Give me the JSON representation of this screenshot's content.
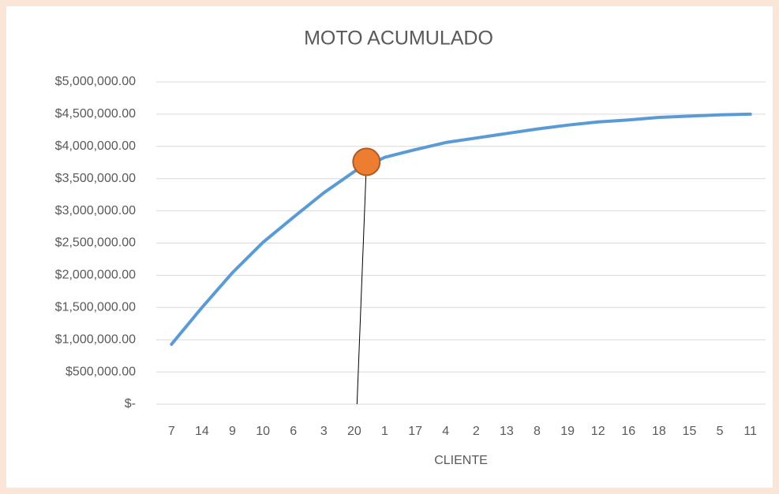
{
  "chart_data": {
    "type": "line",
    "title": "MOTO ACUMULADO",
    "x_label": "CLIENTE",
    "categories": [
      "7",
      "14",
      "9",
      "10",
      "6",
      "3",
      "20",
      "1",
      "17",
      "4",
      "2",
      "13",
      "8",
      "19",
      "12",
      "16",
      "18",
      "15",
      "5",
      "11"
    ],
    "series": [
      {
        "name": "MOTO ACUMULADO",
        "color": "#5b9bd5",
        "values": [
          930000,
          1500000,
          2040000,
          2510000,
          2900000,
          3280000,
          3610000,
          3830000,
          3950000,
          4060000,
          4130000,
          4200000,
          4270000,
          4330000,
          4380000,
          4410000,
          4450000,
          4470000,
          4490000,
          4500000
        ]
      }
    ],
    "highlight_point": {
      "x": 6.4,
      "y": 3760000,
      "color": "#ed7d31"
    },
    "ylim": [
      0,
      5000000
    ],
    "yticks": [
      {
        "value": 0,
        "label": "$-"
      },
      {
        "value": 500000,
        "label": "$500,000.00"
      },
      {
        "value": 1000000,
        "label": "$1,000,000.00"
      },
      {
        "value": 1500000,
        "label": "$1,500,000.00"
      },
      {
        "value": 2000000,
        "label": "$2,000,000.00"
      },
      {
        "value": 2500000,
        "label": "$2,500,000.00"
      },
      {
        "value": 3000000,
        "label": "$3,000,000.00"
      },
      {
        "value": 3500000,
        "label": "$3,500,000.00"
      },
      {
        "value": 4000000,
        "label": "$4,000,000.00"
      },
      {
        "value": 4500000,
        "label": "$4,500,000.00"
      },
      {
        "value": 5000000,
        "label": "$5,000,000.00"
      }
    ],
    "grid": true
  }
}
